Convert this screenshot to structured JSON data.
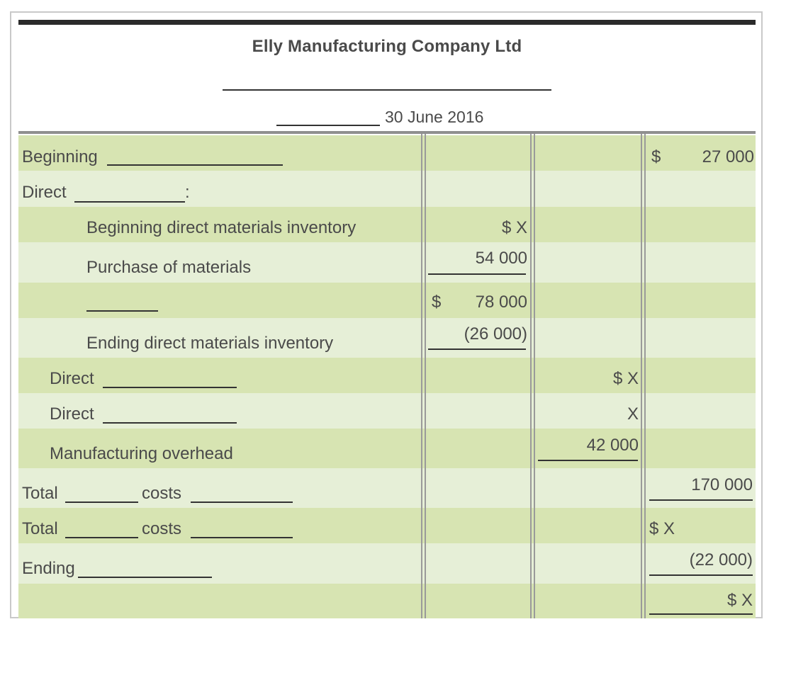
{
  "header": {
    "company": "Elly Manufacturing Company Ltd",
    "date": "30 June 2016"
  },
  "rows": {
    "beginning": {
      "label": "Beginning",
      "amount_currency": "$",
      "amount": "27 000"
    },
    "direct": {
      "label": "Direct",
      "suffix": ":"
    },
    "beg_dm": {
      "label": "Beginning direct materials inventory",
      "amount": "$ X"
    },
    "purchases": {
      "label": "Purchase of materials",
      "amount": "54 000"
    },
    "subtotal": {
      "currency": "$",
      "amount": "78 000"
    },
    "ending_dm": {
      "label": "Ending direct materials inventory",
      "amount": "(26 000)"
    },
    "direct_a": {
      "label": "Direct",
      "amount": "$ X"
    },
    "direct_b": {
      "label": "Direct",
      "amount": "X"
    },
    "overhead": {
      "label": "Manufacturing overhead",
      "amount": "42 000"
    },
    "total_1": {
      "label": "Total",
      "mid": "costs",
      "amount": "170 000"
    },
    "total_2": {
      "label": "Total",
      "mid": "costs",
      "amount": "$ X"
    },
    "ending": {
      "label": "Ending",
      "amount": "(22 000)"
    },
    "final": {
      "amount": "$ X"
    }
  }
}
